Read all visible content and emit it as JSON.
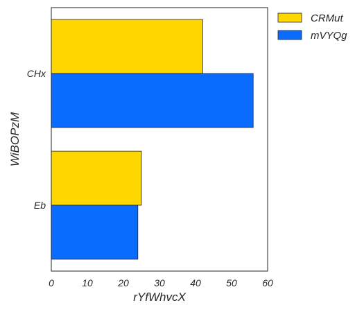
{
  "chart_data": {
    "type": "bar",
    "orientation": "horizontal",
    "title": "",
    "xlabel": "rYfWhvcX",
    "ylabel": "WiBOPzM",
    "categories": [
      "CHx",
      "Eb"
    ],
    "series": [
      {
        "name": "CRMut",
        "values": [
          42,
          25
        ],
        "color": "#FFD700"
      },
      {
        "name": "mVYQg",
        "values": [
          56,
          24
        ],
        "color": "#0A6BFF"
      }
    ],
    "xlim": [
      0,
      60
    ],
    "xticks": [
      "0",
      "10",
      "20",
      "30",
      "40",
      "50",
      "60"
    ],
    "grid": false,
    "legend_position": "outside-top-right"
  }
}
